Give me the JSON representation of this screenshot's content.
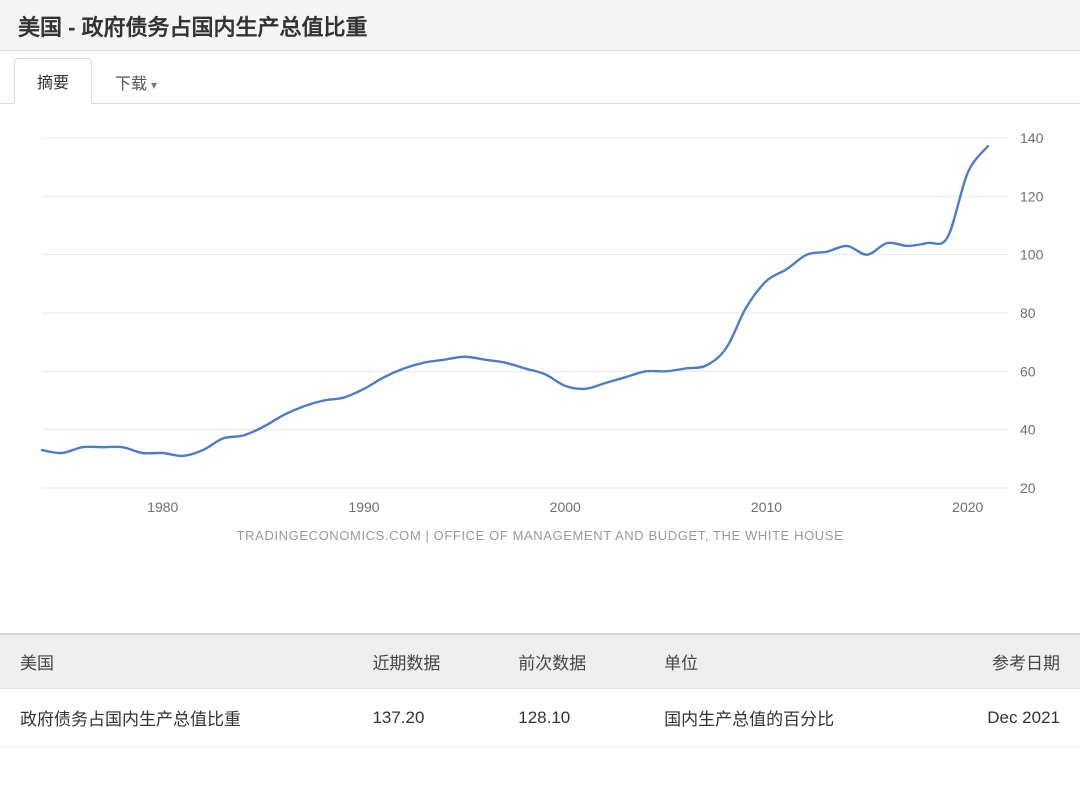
{
  "header": {
    "title": "美国 - 政府债务占国内生产总值比重"
  },
  "tabs": {
    "summary_label": "摘要",
    "download_label": "下载"
  },
  "chart": {
    "type": "line",
    "line_color": "#4f7cc9",
    "line_width": 2.4,
    "background_color": "#ffffff",
    "grid_color": "#e9e9e9",
    "axis_text_color": "#707070",
    "axis_fontsize": 14,
    "x": {
      "min": 1974,
      "max": 2022,
      "ticks": [
        1980,
        1990,
        2000,
        2010,
        2020
      ]
    },
    "y": {
      "min": 20,
      "max": 140,
      "ticks": [
        20,
        40,
        60,
        80,
        100,
        120,
        140
      ],
      "side": "right"
    },
    "series": [
      {
        "year": 1974,
        "value": 33
      },
      {
        "year": 1975,
        "value": 32
      },
      {
        "year": 1976,
        "value": 34
      },
      {
        "year": 1977,
        "value": 34
      },
      {
        "year": 1978,
        "value": 34
      },
      {
        "year": 1979,
        "value": 32
      },
      {
        "year": 1980,
        "value": 32
      },
      {
        "year": 1981,
        "value": 31
      },
      {
        "year": 1982,
        "value": 33
      },
      {
        "year": 1983,
        "value": 37
      },
      {
        "year": 1984,
        "value": 38
      },
      {
        "year": 1985,
        "value": 41
      },
      {
        "year": 1986,
        "value": 45
      },
      {
        "year": 1987,
        "value": 48
      },
      {
        "year": 1988,
        "value": 50
      },
      {
        "year": 1989,
        "value": 51
      },
      {
        "year": 1990,
        "value": 54
      },
      {
        "year": 1991,
        "value": 58
      },
      {
        "year": 1992,
        "value": 61
      },
      {
        "year": 1993,
        "value": 63
      },
      {
        "year": 1994,
        "value": 64
      },
      {
        "year": 1995,
        "value": 65
      },
      {
        "year": 1996,
        "value": 64
      },
      {
        "year": 1997,
        "value": 63
      },
      {
        "year": 1998,
        "value": 61
      },
      {
        "year": 1999,
        "value": 59
      },
      {
        "year": 2000,
        "value": 55
      },
      {
        "year": 2001,
        "value": 54
      },
      {
        "year": 2002,
        "value": 56
      },
      {
        "year": 2003,
        "value": 58
      },
      {
        "year": 2004,
        "value": 60
      },
      {
        "year": 2005,
        "value": 60
      },
      {
        "year": 2006,
        "value": 61
      },
      {
        "year": 2007,
        "value": 62
      },
      {
        "year": 2008,
        "value": 68
      },
      {
        "year": 2009,
        "value": 82
      },
      {
        "year": 2010,
        "value": 91
      },
      {
        "year": 2011,
        "value": 95
      },
      {
        "year": 2012,
        "value": 100
      },
      {
        "year": 2013,
        "value": 101
      },
      {
        "year": 2014,
        "value": 103
      },
      {
        "year": 2015,
        "value": 100
      },
      {
        "year": 2016,
        "value": 104
      },
      {
        "year": 2017,
        "value": 103
      },
      {
        "year": 2018,
        "value": 104
      },
      {
        "year": 2019,
        "value": 106
      },
      {
        "year": 2020,
        "value": 128.1
      },
      {
        "year": 2021,
        "value": 137.2
      }
    ]
  },
  "source_line": "TRADINGECONOMICS.COM | OFFICE OF MANAGEMENT AND BUDGET, THE WHITE HOUSE",
  "table": {
    "columns": {
      "country": "美国",
      "recent": "近期数据",
      "previous": "前次数据",
      "unit": "单位",
      "ref_date": "参考日期"
    },
    "row": {
      "label": "政府债务占国内生产总值比重",
      "recent": "137.20",
      "previous": "128.10",
      "unit": "国内生产总值的百分比",
      "ref_date": "Dec 2021"
    }
  }
}
